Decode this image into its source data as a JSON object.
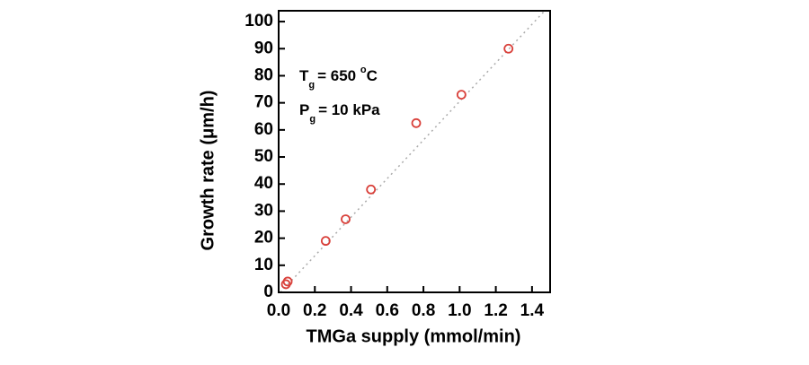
{
  "chart_data": {
    "type": "scatter",
    "x_label": "TMGa supply (mmol/min)",
    "y_label": "Growth rate (μm/h)",
    "annotations": [
      {
        "symbol": "T",
        "sub": "g",
        "text": "= 650 ",
        "sup": "o",
        "unit": "C"
      },
      {
        "symbol": "P",
        "sub": "g",
        "text": "= 10 kPa"
      }
    ],
    "series": [
      {
        "color": "#d9403a",
        "x": [
          0.04,
          0.05,
          0.26,
          0.37,
          0.51,
          0.76,
          1.01,
          1.27
        ],
        "values": [
          3,
          4,
          19,
          27,
          38,
          62.5,
          73,
          90
        ]
      }
    ],
    "xlim": [
      0,
      1.5
    ],
    "ylim": [
      0,
      104
    ],
    "xticks": [
      {
        "value": 0,
        "label": "0.0"
      },
      0.2,
      0.4,
      0.6,
      0.8,
      {
        "value": 1,
        "label": "1.0"
      },
      1.2,
      1.4
    ],
    "yticks": [
      0,
      10,
      20,
      30,
      40,
      50,
      60,
      70,
      80,
      90,
      100
    ]
  }
}
